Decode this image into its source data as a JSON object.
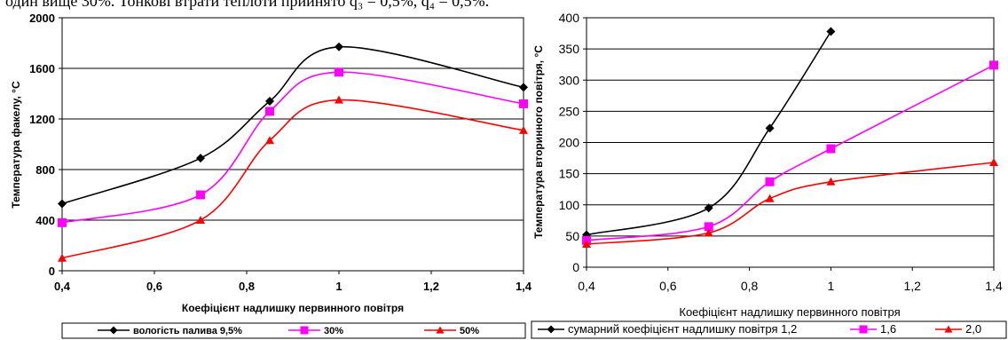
{
  "top_text": "один вище 30%. Тонкові втрати теплоти прийнято q₃ = 0,5%, q₄ = 0,5%.",
  "colors": {
    "black": "#000000",
    "magenta": "#ff00ff",
    "red": "#ff0000"
  },
  "chart_data": [
    {
      "type": "line",
      "x": [
        0.4,
        0.7,
        0.85,
        1.0,
        1.4
      ],
      "xlim": [
        0.4,
        1.4
      ],
      "xticks": [
        "0,4",
        "0,6",
        "0,8",
        "1",
        "1,2",
        "1,4"
      ],
      "ylim": [
        0,
        2000
      ],
      "yticks": [
        "0",
        "400",
        "800",
        "1200",
        "1600",
        "2000"
      ],
      "xlabel": "Коефіцієнт надлишку первинного повітря",
      "ylabel": "Температура факелу, °С",
      "grid": "horizontal",
      "legend_position": "bottom",
      "series": [
        {
          "name": "вологість палива 9,5%",
          "color": "#000000",
          "marker": "diamond",
          "values": [
            530,
            890,
            1340,
            1770,
            1450
          ]
        },
        {
          "name": "30%",
          "color": "#ff00ff",
          "marker": "square",
          "values": [
            380,
            600,
            1260,
            1570,
            1320
          ]
        },
        {
          "name": "50%",
          "color": "#ff0000",
          "marker": "triangle",
          "values": [
            100,
            400,
            1030,
            1350,
            1110
          ]
        }
      ]
    },
    {
      "type": "line",
      "x": [
        0.4,
        0.7,
        0.85,
        1.0,
        1.4
      ],
      "xlim": [
        0.4,
        1.4
      ],
      "xticks": [
        "0,4",
        "0,6",
        "0,8",
        "1",
        "1,2",
        "1,4"
      ],
      "ylim": [
        0,
        400
      ],
      "yticks": [
        "0",
        "50",
        "100",
        "150",
        "200",
        "250",
        "300",
        "350",
        "400"
      ],
      "xlabel": "Коефіцієнт надлишку первинного повітря",
      "ylabel": "Температура вторинного повітря, °С",
      "grid": "horizontal",
      "legend_position": "bottom",
      "series": [
        {
          "name": "сумарний коефіцієнт надлишку повітря 1,2",
          "color": "#000000",
          "marker": "diamond",
          "x": [
            0.4,
            0.7,
            0.85,
            1.0
          ],
          "values": [
            52,
            95,
            223,
            378
          ]
        },
        {
          "name": "1,6",
          "color": "#ff00ff",
          "marker": "square",
          "values": [
            43,
            65,
            137,
            190,
            324
          ]
        },
        {
          "name": "2,0",
          "color": "#ff0000",
          "marker": "triangle",
          "values": [
            37,
            55,
            110,
            137,
            168
          ]
        }
      ]
    }
  ]
}
